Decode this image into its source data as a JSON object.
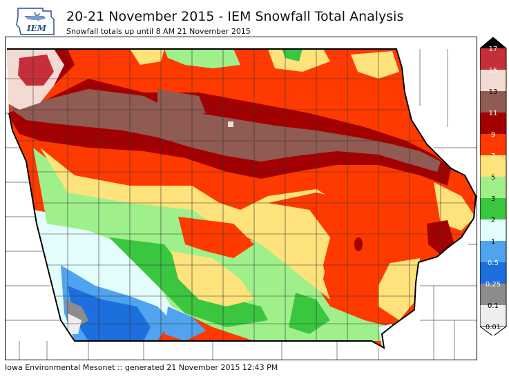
{
  "header": {
    "logo_text": "IEM",
    "title": "20-21 November 2015 - IEM Snowfall Total Analysis",
    "subtitle": "Snowfall totals up until 8 AM 21 November 2015"
  },
  "footer": {
    "text": "Iowa Environmental Mesonet :: generated 21 November 2015 12:43 PM"
  },
  "legend": {
    "items": [
      {
        "label": "17",
        "color": "#000000",
        "text_color": "#ffffff"
      },
      {
        "label": "15",
        "color": "#c62f3a",
        "text_color": "#ffffff"
      },
      {
        "label": "13",
        "color": "#f3dbd4",
        "text_color": "#000000"
      },
      {
        "label": "11",
        "color": "#8f5b53",
        "text_color": "#ffffff"
      },
      {
        "label": "9",
        "color": "#a30002",
        "text_color": "#ffffff"
      },
      {
        "label": "7",
        "color": "#ff3a00",
        "text_color": "#ffffff"
      },
      {
        "label": "5",
        "color": "#fee27b",
        "text_color": "#000000"
      },
      {
        "label": "3",
        "color": "#9ff08b",
        "text_color": "#000000"
      },
      {
        "label": "2",
        "color": "#3bc640",
        "text_color": "#000000"
      },
      {
        "label": "1",
        "color": "#e3fdfd",
        "text_color": "#000000"
      },
      {
        "label": "0.5",
        "color": "#4fa3ef",
        "text_color": "#ffffff"
      },
      {
        "label": "0.25",
        "color": "#1d6fdd",
        "text_color": "#ffffff"
      },
      {
        "label": "0.1",
        "color": "#8c8c8c",
        "text_color": "#000000"
      },
      {
        "label": "0.01",
        "color": "#eeeeee",
        "text_color": "#000000"
      }
    ]
  },
  "colors": {
    "black": "#000000",
    "dark_red": "#c62f3a",
    "pink": "#f3dbd4",
    "brown": "#8f5b53",
    "maroon": "#a30002",
    "red_orange": "#ff3a00",
    "yellow": "#fee27b",
    "light_green": "#9ff08b",
    "green": "#3bc640",
    "light_cyan": "#e3fdfd",
    "light_blue": "#4fa3ef",
    "blue": "#1d6fdd",
    "gray": "#8c8c8c",
    "light_gray": "#eeeeee"
  }
}
